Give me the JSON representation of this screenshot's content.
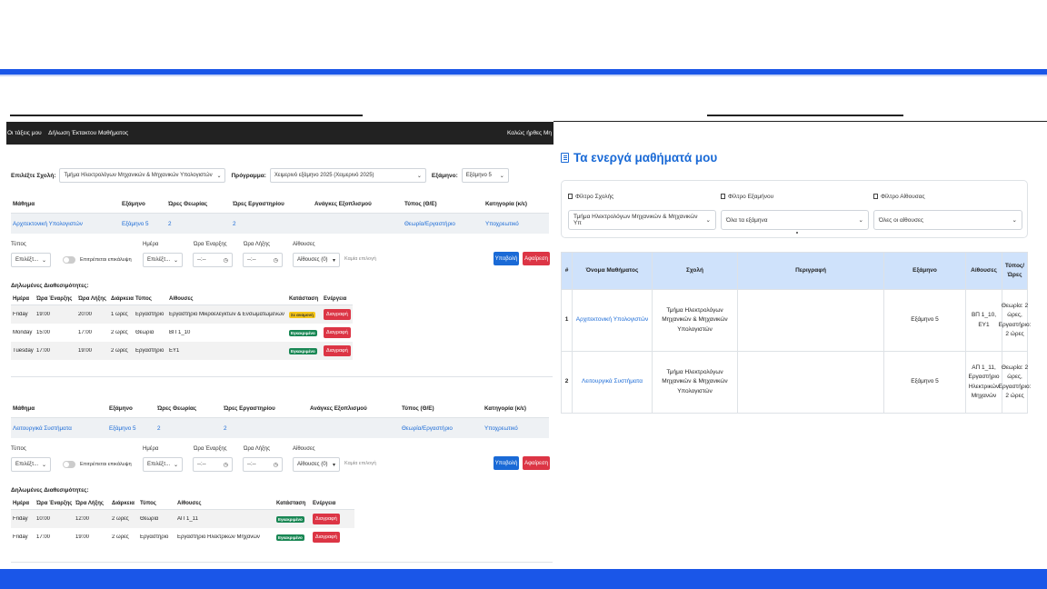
{
  "nav": {
    "links": [
      "Οι τάξεις μου",
      "Δήλωση Έκτακτου Μαθήματος"
    ],
    "greeting": "Καλώς ήρθες Μη"
  },
  "selection": {
    "school_label": "Επιλέξτε Σχολή:",
    "school_value": "Τμήμα Ηλεκτρολόγων Μηχανικών & Μηχανικών Υπολογιστών",
    "program_label": "Πρόγραμμα:",
    "program_value": "Χειμερινό εξάμηνο 2025 (Χειμερινό 2025)",
    "semester_label": "Εξάμηνο:",
    "semester_value": "Εξάμηνο 5"
  },
  "course_headers": [
    "Μάθημα",
    "Εξάμηνο",
    "Ώρες Θεωρίας",
    "Ώρες Εργαστηρίου",
    "Ανάγκες Εξοπλισμού",
    "Τύπος (Θ/Ε)",
    "Κατηγορία (κ/ε)"
  ],
  "form": {
    "type_label": "Τύπος",
    "type_value": "Επιλέξτ...",
    "toggle_label": "Επιτρέπεται επικάλυψη",
    "day_label": "Ημέρα",
    "day_value": "Επιλέξτ...",
    "start_label": "Ώρα Έναρξης",
    "end_label": "Ώρα Λήξης",
    "time_value": "--:--",
    "rooms_label": "Αίθουσες",
    "rooms_value": "Αίθουσες (0)",
    "no_selection": "Καμία επιλογή",
    "submit": "Υποβολή",
    "reset": "Αφαίρεση",
    "declared_title": "Δηλωμένες Διαθεσιμότητες:"
  },
  "slot_headers": [
    "Ημέρα",
    "Ώρα Έναρξης",
    "Ώρα Λήξης",
    "Διάρκεια",
    "Τύπος",
    "Αίθουσες",
    "Κατάσταση",
    "Ενέργεια"
  ],
  "courses": [
    {
      "name": "Αρχιτεκτονική Υπολογιστών",
      "semester": "Εξάμηνο 5",
      "theory": "2",
      "lab": "2",
      "equipment": "",
      "type": "Θεωρία/Εργαστήριο",
      "category": "Υποχρεωτικό",
      "slots": [
        {
          "day": "Friday",
          "start": "19:00",
          "end": "20:00",
          "duration": "1 ώρες",
          "type": "Εργαστήριο",
          "rooms": "Εργαστήριο Μικροελεγκτών & Ενσωματωμένων",
          "status": "Σε αναμονή",
          "status_color": "#f5c518",
          "action": "Διαγραφή"
        },
        {
          "day": "Monday",
          "start": "15:00",
          "end": "17:00",
          "duration": "2 ώρες",
          "type": "Θεωρία",
          "rooms": "ΒΠ 1_10",
          "status": "Εγκεκριμένο",
          "status_color": "#198754",
          "action": "Διαγραφή"
        },
        {
          "day": "Tuesday",
          "start": "17:00",
          "end": "19:00",
          "duration": "2 ώρες",
          "type": "Εργαστήριο",
          "rooms": "ΕΥ1",
          "status": "Εγκεκριμένο",
          "status_color": "#198754",
          "action": "Διαγραφή"
        }
      ]
    },
    {
      "name": "Λειτουργικά Συστήματα",
      "semester": "Εξάμηνο 5",
      "theory": "2",
      "lab": "2",
      "equipment": "",
      "type": "Θεωρία/Εργαστήριο",
      "category": "Υποχρεωτικό",
      "slots": [
        {
          "day": "Friday",
          "start": "10:00",
          "end": "12:00",
          "duration": "2 ώρες",
          "type": "Θεωρία",
          "rooms": "ΑΠ 1_11",
          "status": "Εγκεκριμένο",
          "status_color": "#198754",
          "action": "Διαγραφή"
        },
        {
          "day": "Friday",
          "start": "17:00",
          "end": "19:00",
          "duration": "2 ώρες",
          "type": "Εργαστήριο",
          "rooms": "Εργαστήριο Ηλεκτρικών Μηχανών",
          "status": "Εγκεκριμένο",
          "status_color": "#198754",
          "action": "Διαγραφή"
        }
      ]
    }
  ],
  "right": {
    "title": "Τα ενεργά μαθήματά μου",
    "filters": {
      "school_label": "Φίλτρο Σχολής",
      "school_value": "Τμήμα Ηλεκτρολόγων Μηχανικών & Μηχανικών Υπ",
      "semester_label": "Φίλτρο Εξαμήνου",
      "semester_value": "Όλα τα εξάμηνα",
      "room_label": "Φίλτρο Αίθουσας",
      "room_value": "Όλες οι αίθουσες"
    },
    "headers": [
      "#",
      "Όνομα Μαθήματος",
      "Σχολή",
      "Περιγραφή",
      "Εξάμηνο",
      "Αίθουσες",
      "Τύπος/ Ώρες"
    ],
    "rows": [
      {
        "num": "1",
        "name": "Αρχιτεκτονική Υπολογιστών",
        "school": "Τμήμα Ηλεκτρολόγων Μηχανικών & Μηχανικών Υπολογιστών",
        "desc": "",
        "semester": "Εξάμηνο 5",
        "rooms": "ΒΠ 1_10, ΕΥ1",
        "hours": "Θεωρία: 2 ώρες, Εργαστήριο: 2 ώρες"
      },
      {
        "num": "2",
        "name": "Λειτουργικά Συστήματα",
        "school": "Τμήμα Ηλεκτρολόγων Μηχανικών & Μηχανικών Υπολογιστών",
        "desc": "",
        "semester": "Εξάμηνο 5",
        "rooms": "ΑΠ 1_11, Εργαστήριο Ηλεκτρικών Μηχανών",
        "hours": "Θεωρία: 2 ώρες, Εργαστήριο: 2 ώρες"
      }
    ]
  },
  "colors": {
    "accent": "#1a56e8",
    "link": "#1a6ad6",
    "danger": "#dc3545",
    "success": "#198754",
    "warning": "#f5c518"
  }
}
